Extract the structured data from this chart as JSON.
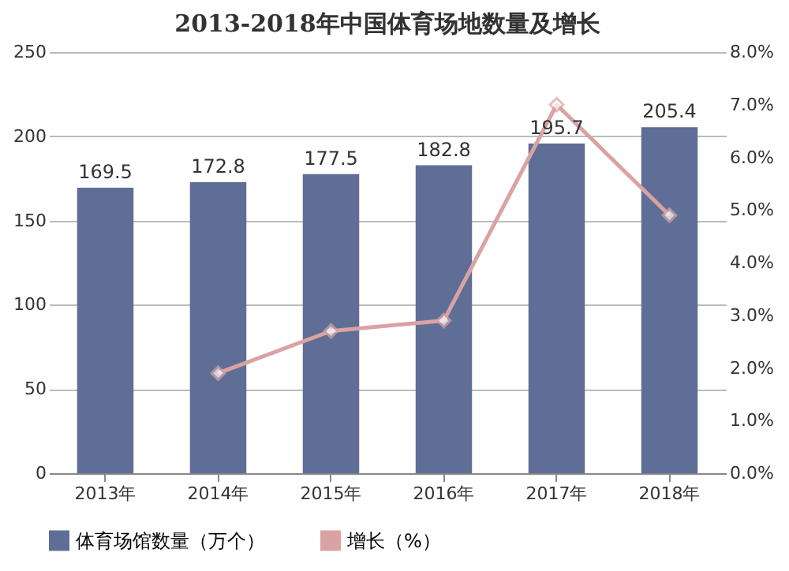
{
  "chart_data": {
    "type": "bar",
    "title": "2013-2018年中国体育场地数量及增长",
    "categories": [
      "2013年",
      "2014年",
      "2015年",
      "2016年",
      "2017年",
      "2018年"
    ],
    "series": [
      {
        "name": "体育场馆数量（万个）",
        "type": "bar",
        "color": "#5f6e96",
        "values": [
          169.5,
          172.8,
          177.5,
          182.8,
          195.7,
          205.4
        ],
        "value_labels": [
          "169.5",
          "172.8",
          "177.5",
          "182.8",
          "195.7",
          "205.4"
        ]
      },
      {
        "name": "增长（%）",
        "type": "line",
        "axis": "y2",
        "color": "#d9a3a3",
        "marker": "diamond",
        "values": [
          null,
          1.9,
          2.7,
          2.9,
          7.0,
          4.9
        ]
      }
    ],
    "ylim": [
      0,
      250
    ],
    "yticks": [
      0,
      50,
      100,
      150,
      200,
      250
    ],
    "y2lim": [
      0,
      8
    ],
    "y2ticks": [
      {
        "value": 0,
        "label": "0.0%"
      },
      {
        "value": 1,
        "label": "1.0%"
      },
      {
        "value": 2,
        "label": "2.0%"
      },
      {
        "value": 3,
        "label": "3.0%"
      },
      {
        "value": 4,
        "label": "4.0%"
      },
      {
        "value": 5,
        "label": "5.0%"
      },
      {
        "value": 6,
        "label": "6.0%"
      },
      {
        "value": 7,
        "label": "7.0%"
      },
      {
        "value": 8,
        "label": "8.0%"
      }
    ],
    "grid": "y",
    "legend": "bottom"
  }
}
